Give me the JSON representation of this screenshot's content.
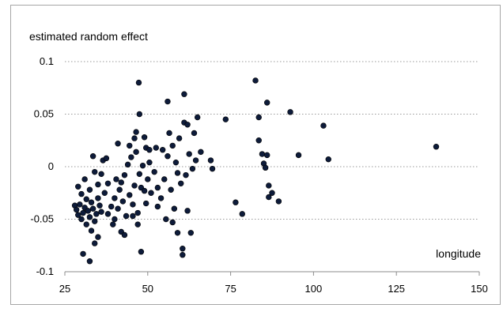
{
  "chart_data": {
    "type": "scatter",
    "title": "",
    "ylabel": "estimated random effect",
    "xlabel": "longitude",
    "xlim": [
      25,
      150
    ],
    "ylim": [
      -0.1,
      0.1
    ],
    "xticks": [
      25,
      50,
      75,
      100,
      125,
      150
    ],
    "yticks": [
      -0.1,
      -0.05,
      0,
      0.05,
      0.1
    ],
    "xtick_labels": [
      "25",
      "50",
      "75",
      "100",
      "125",
      "150"
    ],
    "ytick_labels": [
      "-0.1",
      "-0.05",
      "0",
      "0.05",
      "0.1"
    ],
    "grid": "horizontal dotted",
    "marker_color": "#0d1b3a",
    "points": [
      [
        28.0,
        -0.037
      ],
      [
        28.5,
        -0.041
      ],
      [
        29.0,
        -0.046
      ],
      [
        29.5,
        -0.036
      ],
      [
        30.0,
        -0.05
      ],
      [
        30.5,
        -0.044
      ],
      [
        31.0,
        -0.039
      ],
      [
        31.5,
        -0.055
      ],
      [
        32.0,
        -0.042
      ],
      [
        32.5,
        -0.048
      ],
      [
        33.0,
        -0.034
      ],
      [
        33.5,
        -0.04
      ],
      [
        34.0,
        -0.052
      ],
      [
        34.5,
        -0.045
      ],
      [
        35.0,
        -0.03
      ],
      [
        35.5,
        -0.037
      ],
      [
        36.0,
        -0.043
      ],
      [
        29.0,
        -0.019
      ],
      [
        30.0,
        -0.026
      ],
      [
        31.0,
        -0.012
      ],
      [
        32.5,
        -0.022
      ],
      [
        33.5,
        0.01
      ],
      [
        34.0,
        -0.005
      ],
      [
        35.0,
        -0.017
      ],
      [
        36.0,
        -0.007
      ],
      [
        37.0,
        -0.025
      ],
      [
        38.0,
        -0.016
      ],
      [
        36.5,
        0.006
      ],
      [
        37.5,
        0.008
      ],
      [
        30.5,
        -0.083
      ],
      [
        32.5,
        -0.09
      ],
      [
        34.0,
        -0.073
      ],
      [
        35.0,
        -0.067
      ],
      [
        33.0,
        -0.061
      ],
      [
        31.5,
        -0.031
      ],
      [
        38.0,
        -0.045
      ],
      [
        39.0,
        -0.038
      ],
      [
        39.5,
        -0.055
      ],
      [
        40.0,
        -0.03
      ],
      [
        40.5,
        -0.012
      ],
      [
        41.0,
        -0.04
      ],
      [
        41.5,
        -0.022
      ],
      [
        42.0,
        -0.062
      ],
      [
        42.5,
        -0.033
      ],
      [
        43.0,
        -0.008
      ],
      [
        43.5,
        -0.047
      ],
      [
        44.0,
        0.002
      ],
      [
        44.5,
        -0.027
      ],
      [
        45.0,
        0.009
      ],
      [
        45.5,
        -0.036
      ],
      [
        46.0,
        -0.018
      ],
      [
        46.5,
        0.014
      ],
      [
        47.0,
        -0.044
      ],
      [
        47.5,
        -0.007
      ],
      [
        48.0,
        -0.02
      ],
      [
        48.5,
        0.001
      ],
      [
        49.0,
        -0.023
      ],
      [
        49.5,
        -0.035
      ],
      [
        50.0,
        -0.012
      ],
      [
        50.5,
        0.004
      ],
      [
        41.0,
        0.022
      ],
      [
        43.0,
        -0.065
      ],
      [
        44.5,
        0.02
      ],
      [
        46.0,
        0.027
      ],
      [
        46.5,
        0.033
      ],
      [
        47.0,
        -0.055
      ],
      [
        48.0,
        -0.081
      ],
      [
        49.0,
        0.028
      ],
      [
        49.5,
        0.018
      ],
      [
        50.5,
        0.016
      ],
      [
        47.3,
        0.08
      ],
      [
        47.5,
        0.05
      ],
      [
        40.0,
        -0.05
      ],
      [
        42.0,
        -0.015
      ],
      [
        45.5,
        -0.047
      ],
      [
        51.0,
        -0.025
      ],
      [
        52.0,
        -0.005
      ],
      [
        52.5,
        0.018
      ],
      [
        53.0,
        -0.038
      ],
      [
        54.0,
        -0.03
      ],
      [
        54.5,
        0.016
      ],
      [
        55.0,
        -0.012
      ],
      [
        55.5,
        -0.05
      ],
      [
        56.0,
        0.01
      ],
      [
        56.5,
        0.032
      ],
      [
        57.0,
        -0.022
      ],
      [
        57.5,
        0.02
      ],
      [
        58.0,
        -0.04
      ],
      [
        58.5,
        0.004
      ],
      [
        59.0,
        -0.063
      ],
      [
        59.5,
        0.027
      ],
      [
        60.0,
        -0.016
      ],
      [
        60.5,
        -0.078
      ],
      [
        61.0,
        0.042
      ],
      [
        61.5,
        -0.008
      ],
      [
        62.0,
        -0.042
      ],
      [
        62.5,
        0.012
      ],
      [
        63.0,
        -0.063
      ],
      [
        63.5,
        -0.002
      ],
      [
        64.0,
        0.032
      ],
      [
        56.0,
        0.062
      ],
      [
        61.0,
        0.069
      ],
      [
        65.0,
        0.047
      ],
      [
        66.0,
        0.014
      ],
      [
        60.5,
        -0.084
      ],
      [
        53.0,
        -0.02
      ],
      [
        57.5,
        -0.053
      ],
      [
        59.0,
        -0.006
      ],
      [
        62.0,
        0.04
      ],
      [
        64.5,
        0.006
      ],
      [
        69.0,
        0.006
      ],
      [
        69.5,
        -0.002
      ],
      [
        73.5,
        0.045
      ],
      [
        76.5,
        -0.034
      ],
      [
        78.5,
        -0.045
      ],
      [
        82.5,
        0.082
      ],
      [
        83.5,
        0.047
      ],
      [
        83.5,
        0.025
      ],
      [
        84.5,
        0.012
      ],
      [
        85.0,
        0.003
      ],
      [
        85.5,
        -0.001
      ],
      [
        86.0,
        0.011
      ],
      [
        86.0,
        0.061
      ],
      [
        86.5,
        -0.018
      ],
      [
        86.5,
        -0.029
      ],
      [
        87.5,
        -0.025
      ],
      [
        89.5,
        -0.033
      ],
      [
        93.0,
        0.052
      ],
      [
        95.5,
        0.011
      ],
      [
        103.0,
        0.039
      ],
      [
        104.5,
        0.007
      ],
      [
        137.0,
        0.019
      ]
    ]
  }
}
